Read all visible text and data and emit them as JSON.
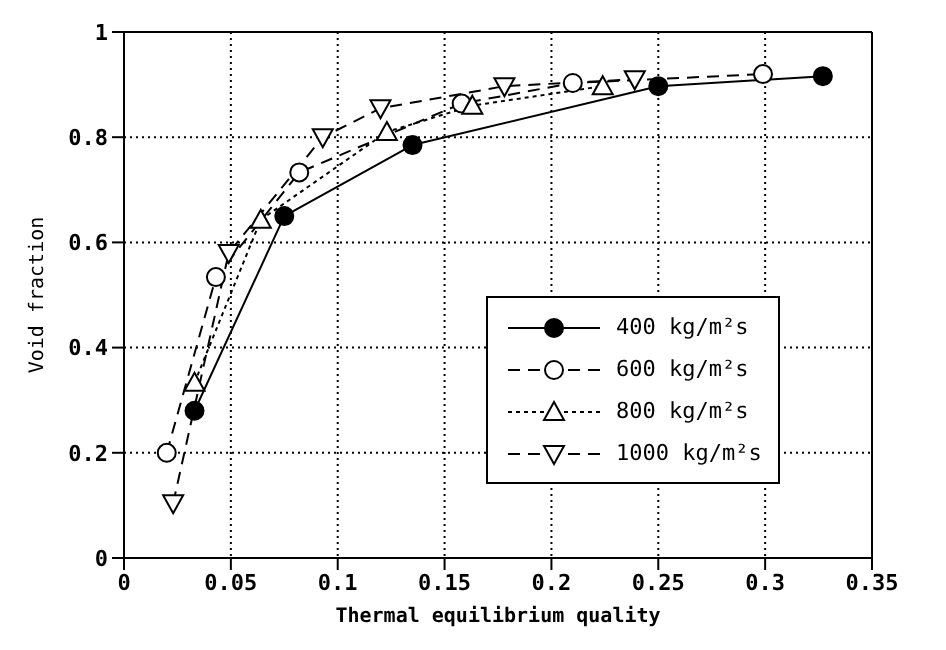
{
  "chart_data": {
    "type": "line",
    "xlabel": "Thermal equilibrium quality",
    "ylabel": "Void fraction",
    "xlim": [
      0,
      0.35
    ],
    "xticks": [
      0,
      0.05,
      0.1,
      0.15,
      0.2,
      0.25,
      0.3,
      0.35
    ],
    "ylim": [
      0,
      1
    ],
    "yticks": [
      0,
      0.2,
      0.4,
      0.6,
      0.8,
      1
    ],
    "grid": true,
    "legend": "bottom right",
    "series": [
      {
        "name": "400 kg/m²s",
        "color": "#000000",
        "marker": "circle",
        "line_style": "solid",
        "x": [
          0.033,
          0.075,
          0.135,
          0.25,
          0.327
        ],
        "values": [
          0.28,
          0.65,
          0.785,
          0.897,
          0.916
        ]
      },
      {
        "name": "600 kg/m²s",
        "color": "#000000",
        "marker": "circle",
        "line_style": "dashed",
        "x": [
          0.02,
          0.043,
          0.082,
          0.158,
          0.21,
          0.299
        ],
        "values": [
          0.2,
          0.534,
          0.733,
          0.864,
          0.903,
          0.92
        ]
      },
      {
        "name": "800 kg/m²s",
        "color": "#000000",
        "marker": "triangle",
        "line_style": "dotted",
        "x": [
          0.033,
          0.064,
          0.123,
          0.163,
          0.224
        ],
        "values": [
          0.333,
          0.643,
          0.81,
          0.86,
          0.897
        ]
      },
      {
        "name": "1000 kg/m²s",
        "color": "#000000",
        "marker": "triangle",
        "line_style": "dashed",
        "x": [
          0.023,
          0.049,
          0.093,
          0.12,
          0.178,
          0.239
        ],
        "values": [
          0.104,
          0.58,
          0.8,
          0.855,
          0.897,
          0.91
        ]
      }
    ]
  }
}
